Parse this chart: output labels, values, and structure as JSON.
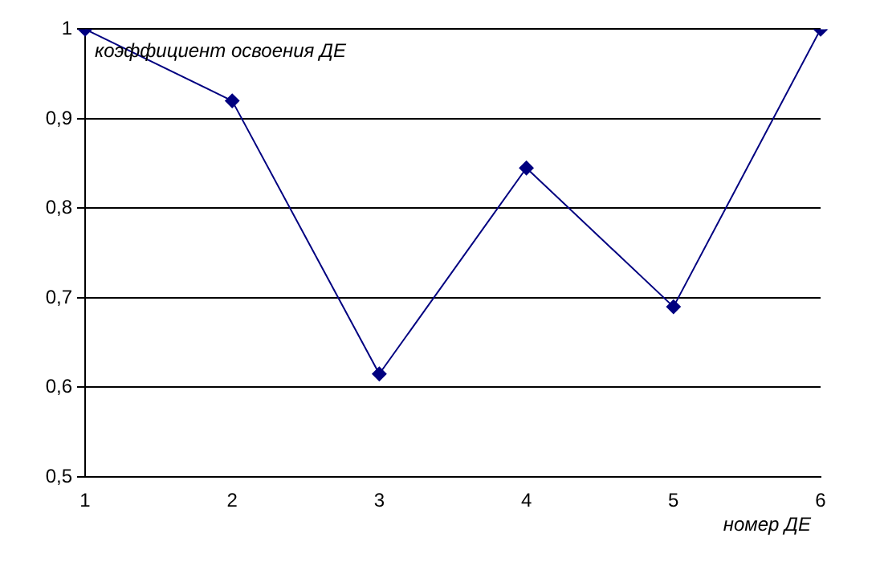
{
  "chart_data": {
    "type": "line",
    "xlabel": "номер ДЕ",
    "ylabel": "коэффициент освоения ДЕ",
    "categories": [
      "1",
      "2",
      "3",
      "4",
      "5",
      "6"
    ],
    "series": [
      {
        "color": "#000080",
        "values": [
          1,
          0.92,
          0.615,
          0.845,
          0.69,
          1
        ]
      }
    ],
    "ylim": [
      0.5,
      1
    ],
    "yticks": [
      {
        "value": 0.5,
        "label": "0,5"
      },
      {
        "value": 0.6,
        "label": "0,6"
      },
      {
        "value": 0.7,
        "label": "0,7"
      },
      {
        "value": 0.8,
        "label": "0,8"
      },
      {
        "value": 0.9,
        "label": "0,9"
      },
      1
    ],
    "grid": "y",
    "legend": false,
    "marker": "diamond",
    "line_style": "solid"
  }
}
